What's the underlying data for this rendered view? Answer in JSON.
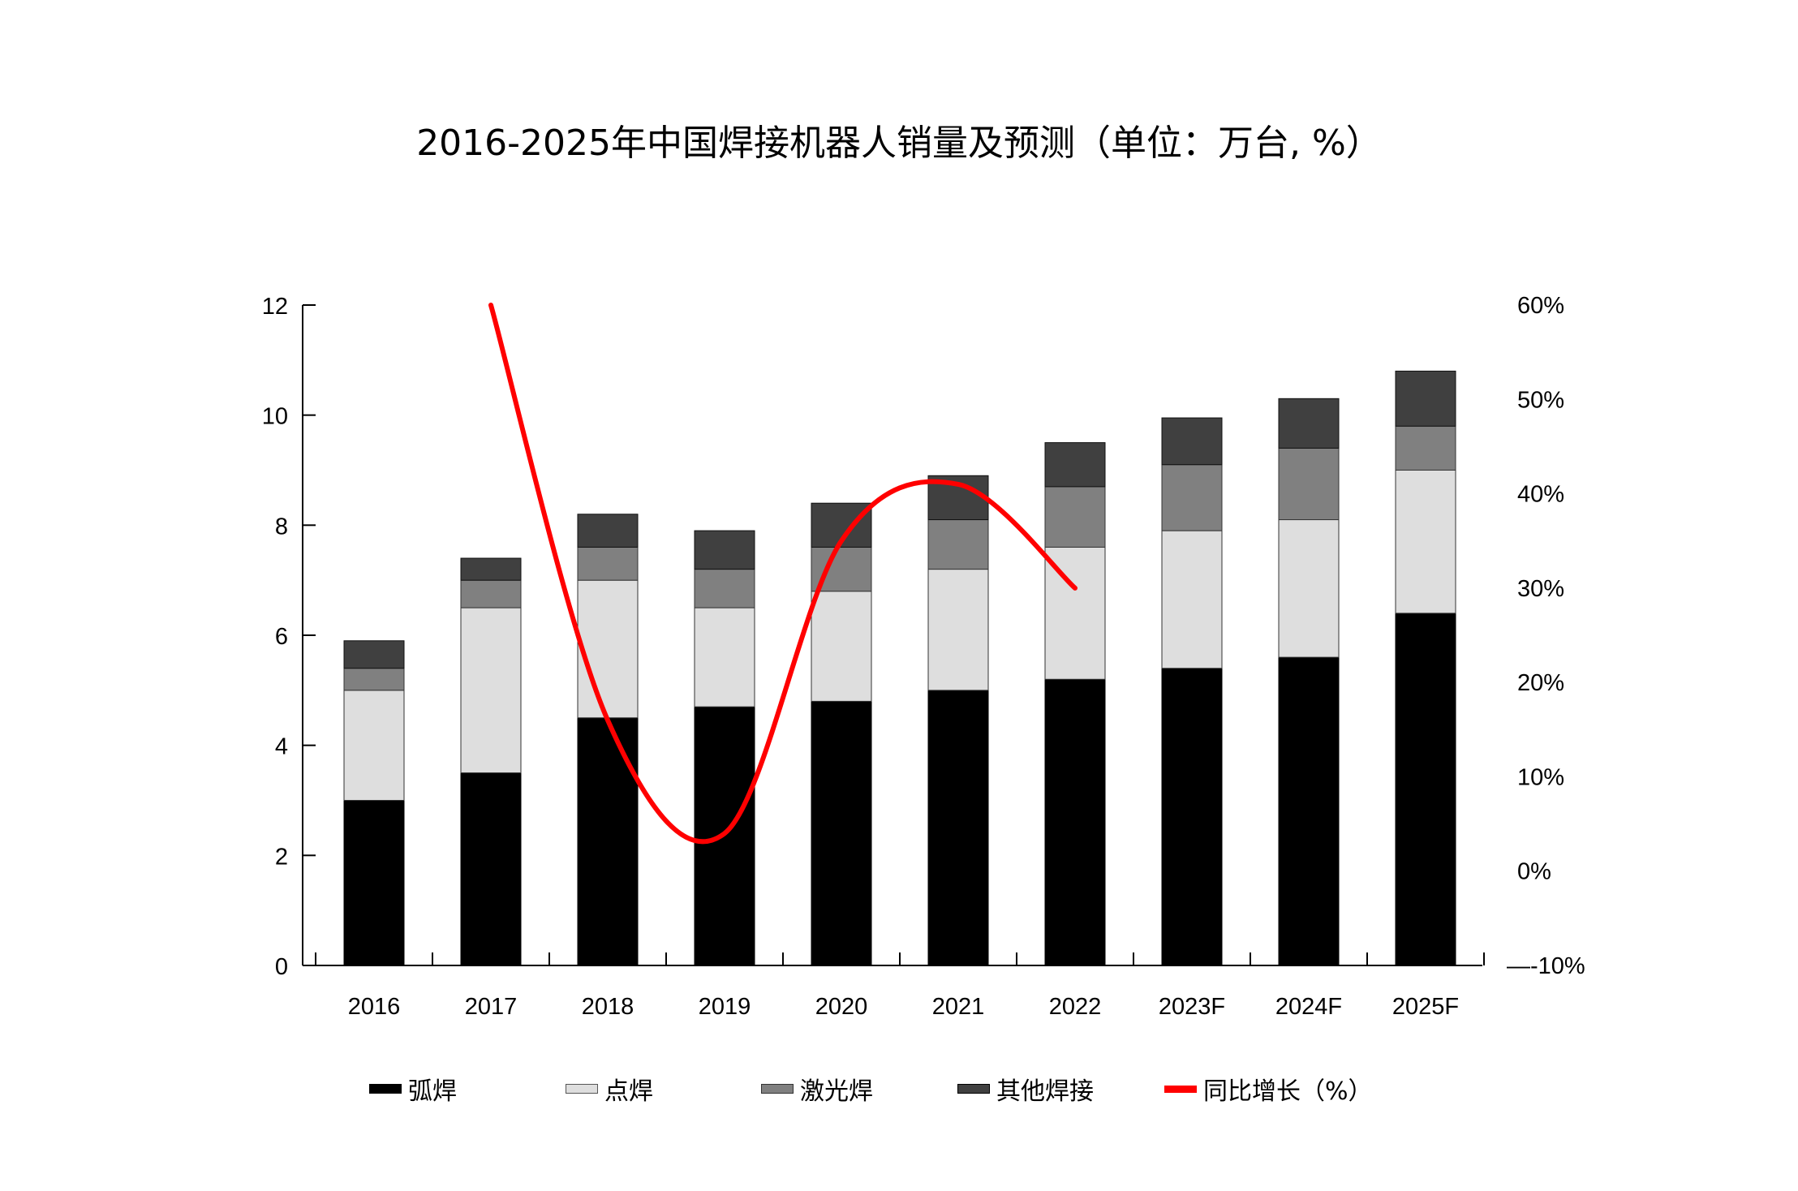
{
  "title": "2016-2025年中国焊接机器人销量及预测（单位：万台, %）",
  "colors": {
    "arc": "#000000",
    "spot": "#dedede",
    "laser": "#808080",
    "other": "#404040",
    "growth": "#ff0000"
  },
  "chart_data": {
    "type": "bar",
    "stacked": true,
    "title": "2016-2025年中国焊接机器人销量及预测（单位：万台, %）",
    "categories": [
      "2016",
      "2017",
      "2018",
      "2019",
      "2020",
      "2021",
      "2022",
      "2023F",
      "2024F",
      "2025F"
    ],
    "series": [
      {
        "name": "弧焊",
        "color": "#000000",
        "values": [
          3.0,
          3.5,
          4.5,
          4.7,
          4.8,
          5.0,
          5.2,
          5.4,
          5.6,
          6.4
        ]
      },
      {
        "name": "点焊",
        "color": "#dedede",
        "values": [
          2.0,
          3.0,
          2.5,
          1.8,
          2.0,
          2.2,
          2.4,
          2.5,
          2.5,
          2.6
        ]
      },
      {
        "name": "激光焊",
        "color": "#808080",
        "values": [
          0.4,
          0.5,
          0.6,
          0.7,
          0.8,
          0.9,
          1.1,
          1.2,
          1.3,
          0.8
        ]
      },
      {
        "name": "其他焊接",
        "color": "#404040",
        "values": [
          0.5,
          0.4,
          0.6,
          0.7,
          0.8,
          0.8,
          0.8,
          0.85,
          0.9,
          1.0
        ]
      }
    ],
    "line_series": {
      "name": "同比增长（%）",
      "color": "#ff0000",
      "axis": "right",
      "x": [
        "2017",
        "2018",
        "2019",
        "2020",
        "2021",
        "2022"
      ],
      "values": [
        60,
        16,
        4,
        35,
        41,
        30
      ]
    },
    "left_axis": {
      "ylim": [
        0,
        12
      ],
      "ticks": [
        "0",
        "2",
        "4",
        "6",
        "8",
        "10",
        "12"
      ]
    },
    "right_axis": {
      "ylim": [
        -10,
        60
      ],
      "ticks": [
        "-10%",
        "0%",
        "10%",
        "20%",
        "30%",
        "40%",
        "50%",
        "60%"
      ]
    },
    "legend_position": "bottom",
    "grid": false
  }
}
